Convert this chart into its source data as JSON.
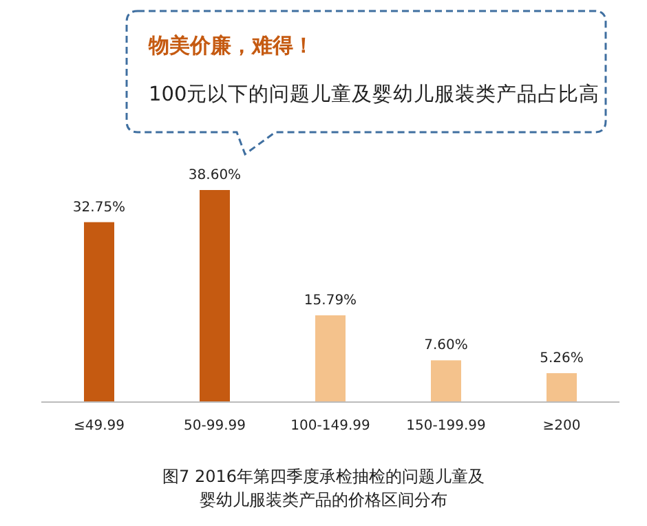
{
  "chart_data": {
    "type": "bar",
    "categories": [
      "≤49.99",
      "50-99.99",
      "100-149.99",
      "150-199.99",
      "≥200"
    ],
    "values": [
      32.75,
      38.6,
      15.79,
      7.6,
      5.26
    ],
    "value_labels": [
      "32.75%",
      "38.60%",
      "15.79%",
      "7.60%",
      "5.26%"
    ],
    "colors": [
      "#c55a11",
      "#c55a11",
      "#f4c28c",
      "#f4c28c",
      "#f4c28c"
    ],
    "annotations": [
      "物美价廉，难得！",
      "100元以下的问题儿童及婴幼儿服装类产品占比高",
      "图7 2016年第四季度承检抽检的问题儿童及婴幼儿服装类产品的价格区间分布"
    ]
  }
}
